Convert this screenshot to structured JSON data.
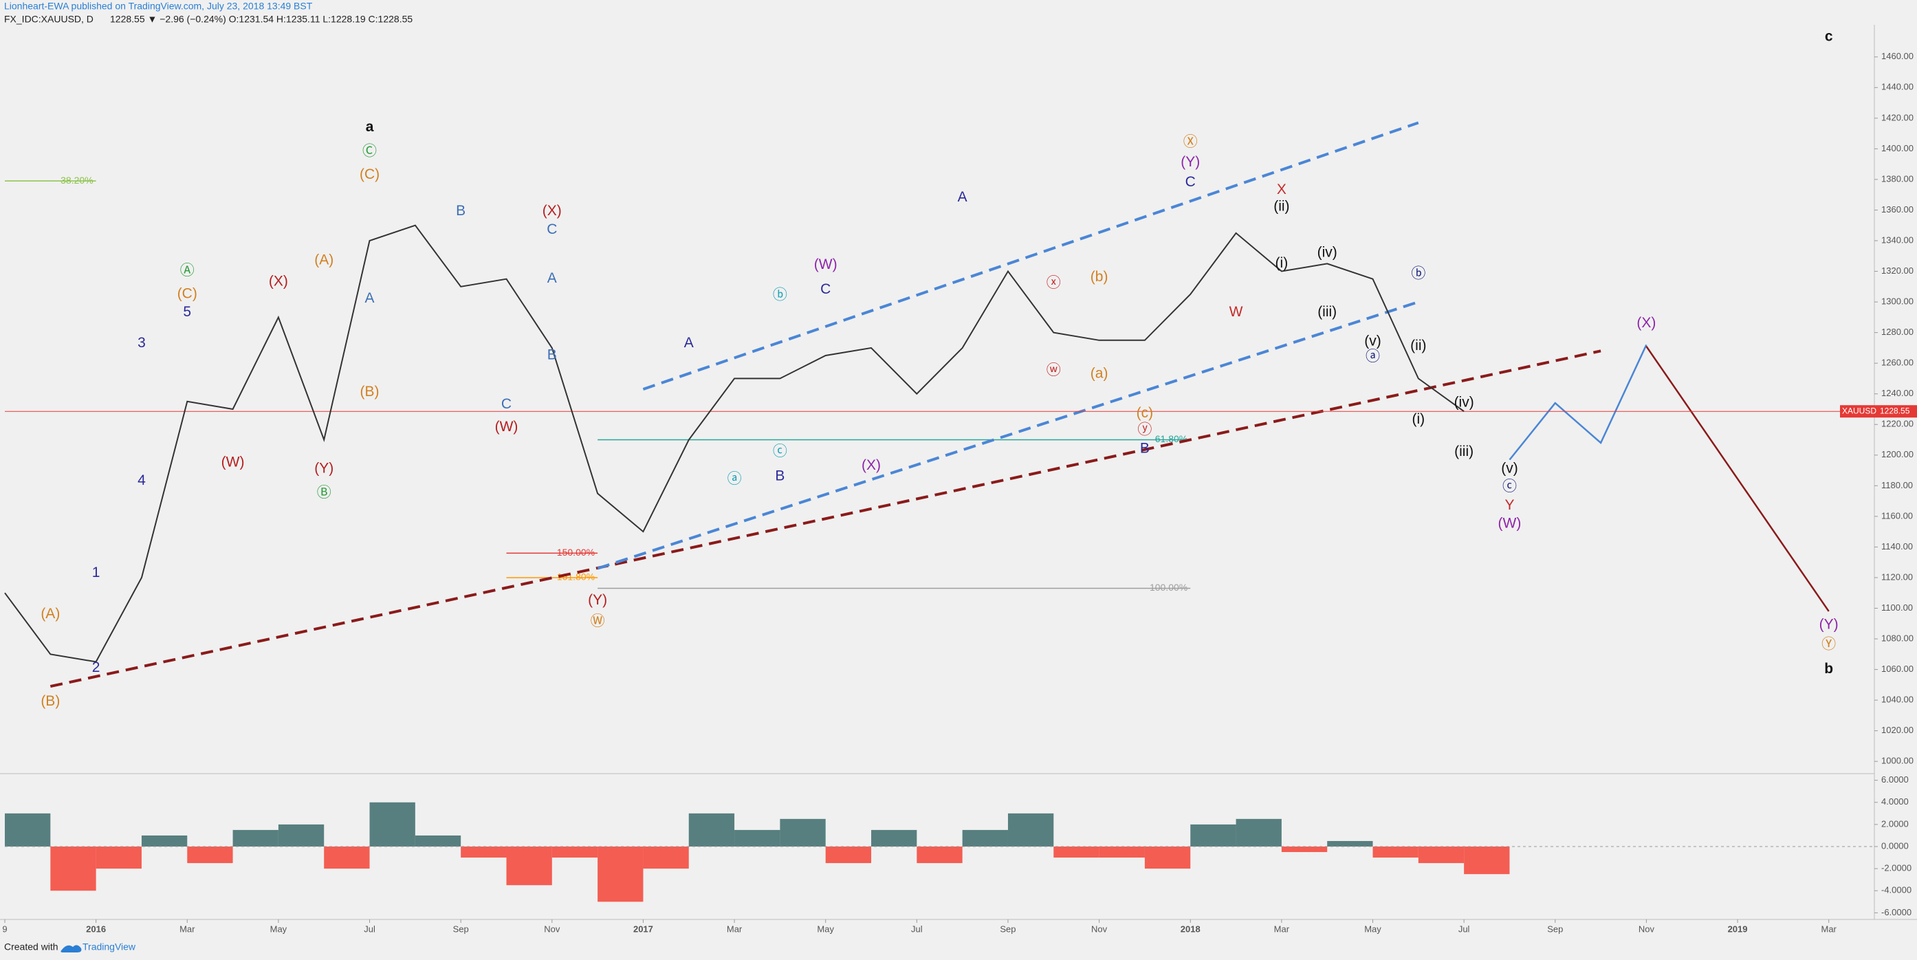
{
  "header": {
    "publisher": "Lionheart-EWA published on TradingView.com, July 23, 2018 13:49 BST",
    "symbol": "FX_IDC:XAUUSD, D",
    "quote": "1228.55 ▼ −2.96 (−0.24%) O:1231.54 H:1235.11 L:1228.19 C:1228.55"
  },
  "footer": {
    "created": "Created with",
    "brand": "TradingView"
  },
  "chart_data": [
    {
      "type": "line",
      "color": "#333333",
      "x": [
        "2015-11",
        "2015-12",
        "2016-01",
        "2016-02",
        "2016-03",
        "2016-04",
        "2016-05",
        "2016-06",
        "2016-07",
        "2016-08",
        "2016-09",
        "2016-10",
        "2016-11",
        "2016-12",
        "2017-01",
        "2017-02",
        "2017-03",
        "2017-04",
        "2017-05",
        "2017-06",
        "2017-07",
        "2017-08",
        "2017-09",
        "2017-10",
        "2017-11",
        "2017-12",
        "2018-01",
        "2018-02",
        "2018-03",
        "2018-04",
        "2018-05",
        "2018-06",
        "2018-07"
      ],
      "values": [
        1110,
        1070,
        1065,
        1120,
        1235,
        1230,
        1290,
        1210,
        1340,
        1350,
        1310,
        1315,
        1270,
        1175,
        1150,
        1210,
        1250,
        1250,
        1265,
        1270,
        1240,
        1270,
        1320,
        1280,
        1275,
        1275,
        1305,
        1345,
        1320,
        1325,
        1315,
        1250,
        1228.55
      ],
      "xlim": [
        "2015-11",
        "2019-04"
      ],
      "xticks": [
        {
          "value": "2015-11",
          "label": "9"
        },
        {
          "value": "2016-01",
          "label": "2016"
        },
        {
          "value": "2016-03",
          "label": "Mar"
        },
        {
          "value": "2016-05",
          "label": "May"
        },
        {
          "value": "2016-07",
          "label": "Jul"
        },
        {
          "value": "2016-09",
          "label": "Sep"
        },
        {
          "value": "2016-11",
          "label": "Nov"
        },
        {
          "value": "2017-01",
          "label": "2017"
        },
        {
          "value": "2017-03",
          "label": "Mar"
        },
        {
          "value": "2017-05",
          "label": "May"
        },
        {
          "value": "2017-07",
          "label": "Jul"
        },
        {
          "value": "2017-09",
          "label": "Sep"
        },
        {
          "value": "2017-11",
          "label": "Nov"
        },
        {
          "value": "2018-01",
          "label": "2018"
        },
        {
          "value": "2018-03",
          "label": "Mar"
        },
        {
          "value": "2018-05",
          "label": "May"
        },
        {
          "value": "2018-07",
          "label": "Jul"
        },
        {
          "value": "2018-09",
          "label": "Sep"
        },
        {
          "value": "2018-11",
          "label": "Nov"
        },
        {
          "value": "2019-01",
          "label": "2019"
        },
        {
          "value": "2019-03",
          "label": "Mar"
        }
      ],
      "ylim": [
        992,
        1481
      ],
      "yticks": [
        {
          "value": 1000,
          "label": "1000.00"
        },
        {
          "value": 1020,
          "label": "1020.00"
        },
        {
          "value": 1040,
          "label": "1040.00"
        },
        {
          "value": 1060,
          "label": "1060.00"
        },
        {
          "value": 1080,
          "label": "1080.00"
        },
        {
          "value": 1100,
          "label": "1100.00"
        },
        {
          "value": 1120,
          "label": "1120.00"
        },
        {
          "value": 1140,
          "label": "1140.00"
        },
        {
          "value": 1160,
          "label": "1160.00"
        },
        {
          "value": 1180,
          "label": "1180.00"
        },
        {
          "value": 1200,
          "label": "1200.00"
        },
        {
          "value": 1220,
          "label": "1220.00"
        },
        {
          "value": 1240,
          "label": "1240.00"
        },
        {
          "value": 1260,
          "label": "1260.00"
        },
        {
          "value": 1280,
          "label": "1280.00"
        },
        {
          "value": 1300,
          "label": "1300.00"
        },
        {
          "value": 1320,
          "label": "1320.00"
        },
        {
          "value": 1340,
          "label": "1340.00"
        },
        {
          "value": 1360,
          "label": "1360.00"
        },
        {
          "value": 1380,
          "label": "1380.00"
        },
        {
          "value": 1400,
          "label": "1400.00"
        },
        {
          "value": 1420,
          "label": "1420.00"
        },
        {
          "value": 1440,
          "label": "1440.00"
        },
        {
          "value": 1460,
          "label": "1460.00"
        }
      ],
      "grid": false,
      "last_price_label": "XAUUSD",
      "last_price": 1228.55,
      "last_price_color": "#e53935",
      "lines": [
        {
          "x": [
            "2015-12",
            "2018-10"
          ],
          "y": [
            1049,
            1268
          ],
          "color": "#8b1a1a",
          "dash": true
        },
        {
          "x": [
            "2017-01",
            "2018-06"
          ],
          "y": [
            1243,
            1417
          ],
          "color": "#4a86d6",
          "dash": true
        },
        {
          "x": [
            "2016-12",
            "2018-06"
          ],
          "y": [
            1126,
            1300
          ],
          "color": "#4a86d6",
          "dash": true
        },
        {
          "x": [
            "2018-08",
            "2018-09",
            "2018-10",
            "2018-11"
          ],
          "y": [
            1197,
            1234,
            1208,
            1272
          ],
          "color": "#4a86d6",
          "dash": false
        },
        {
          "x": [
            "2018-11",
            "2019-03"
          ],
          "y": [
            1271,
            1098
          ],
          "color": "#8b1a1a",
          "dash": false
        }
      ],
      "levels": [
        {
          "label": "38.20%",
          "price": 1379,
          "from": "2015-11",
          "to": "2016-01",
          "color": "#8bc34a"
        },
        {
          "label": "61.80%",
          "price": 1210,
          "from": "2016-12",
          "to": "2018-01",
          "color": "#26a69a"
        },
        {
          "label": "100.00%",
          "price": 1113,
          "from": "2016-12",
          "to": "2018-01",
          "color": "#9e9e9e"
        },
        {
          "label": "150.00%",
          "price": 1136,
          "from": "2016-10",
          "to": "2016-12",
          "color": "#e53935"
        },
        {
          "label": "161.80%",
          "price": 1120,
          "from": "2016-10",
          "to": "2016-12",
          "color": "#ff9800"
        }
      ],
      "annotations": [
        {
          "text": "a",
          "x": "2016-07",
          "y": 1414,
          "color": "#111111"
        },
        {
          "text": "c",
          "x": "2019-03",
          "y": 1473,
          "color": "#111111"
        },
        {
          "text": "b",
          "x": "2019-03",
          "y": 1060,
          "color": "#111111"
        },
        {
          "text": "Ⓒ",
          "x": "2016-07",
          "y": 1398,
          "color": "#2e9e3e"
        },
        {
          "text": "(C)",
          "x": "2016-07",
          "y": 1383,
          "color": "#d2801f"
        },
        {
          "text": "Ⓐ",
          "x": "2016-03",
          "y": 1320,
          "color": "#2e9e3e"
        },
        {
          "text": "(C)",
          "x": "2016-03",
          "y": 1305,
          "color": "#d2801f"
        },
        {
          "text": "5",
          "x": "2016-03",
          "y": 1293,
          "color": "#2a2a9a"
        },
        {
          "text": "3",
          "x": "2016-02",
          "y": 1273,
          "color": "#2a2a9a"
        },
        {
          "text": "4",
          "x": "2016-02",
          "y": 1183,
          "color": "#2a2a9a"
        },
        {
          "text": "1",
          "x": "2016-01",
          "y": 1123,
          "color": "#2a2a9a"
        },
        {
          "text": "2",
          "x": "2016-01",
          "y": 1061,
          "color": "#2a2a9a"
        },
        {
          "text": "(A)",
          "x": "2015-12",
          "y": 1096,
          "color": "#d2801f"
        },
        {
          "text": "(B)",
          "x": "2015-12",
          "y": 1039,
          "color": "#d2801f"
        },
        {
          "text": "(X)",
          "x": "2016-05",
          "y": 1313,
          "color": "#b71c1c"
        },
        {
          "text": "(W)",
          "x": "2016-04",
          "y": 1195,
          "color": "#b71c1c"
        },
        {
          "text": "(Y)",
          "x": "2016-06",
          "y": 1191,
          "color": "#b71c1c"
        },
        {
          "text": "Ⓑ",
          "x": "2016-06",
          "y": 1175,
          "color": "#2e9e3e"
        },
        {
          "text": "(A)",
          "x": "2016-06",
          "y": 1327,
          "color": "#d2801f"
        },
        {
          "text": "(B)",
          "x": "2016-07",
          "y": 1241,
          "color": "#d2801f"
        },
        {
          "text": "B",
          "x": "2016-09",
          "y": 1359,
          "color": "#3d6fb6"
        },
        {
          "text": "A",
          "x": "2016-07",
          "y": 1302,
          "color": "#3d6fb6"
        },
        {
          "text": "(X)",
          "x": "2016-11",
          "y": 1359,
          "color": "#b71c1c"
        },
        {
          "text": "C",
          "x": "2016-11",
          "y": 1347,
          "color": "#3d6fb6"
        },
        {
          "text": "A",
          "x": "2016-11",
          "y": 1315,
          "color": "#3d6fb6"
        },
        {
          "text": "B",
          "x": "2016-11",
          "y": 1265,
          "color": "#3d6fb6"
        },
        {
          "text": "C",
          "x": "2016-10",
          "y": 1233,
          "color": "#3d6fb6"
        },
        {
          "text": "(W)",
          "x": "2016-10",
          "y": 1218,
          "color": "#b71c1c"
        },
        {
          "text": "(Y)",
          "x": "2016-12",
          "y": 1105,
          "color": "#b71c1c"
        },
        {
          "text": "Ⓦ",
          "x": "2016-12",
          "y": 1091,
          "color": "#d2801f"
        },
        {
          "text": "ⓑ",
          "x": "2017-04",
          "y": 1304,
          "color": "#17a2b8"
        },
        {
          "text": "ⓐ",
          "x": "2017-03",
          "y": 1184,
          "color": "#17a2b8"
        },
        {
          "text": "ⓒ",
          "x": "2017-04",
          "y": 1202,
          "color": "#17a2b8"
        },
        {
          "text": "A",
          "x": "2017-02",
          "y": 1273,
          "color": "#2a2a9a"
        },
        {
          "text": "B",
          "x": "2017-04",
          "y": 1186,
          "color": "#2a2a9a"
        },
        {
          "text": "(W)",
          "x": "2017-05",
          "y": 1324,
          "color": "#8e24aa"
        },
        {
          "text": "C",
          "x": "2017-05",
          "y": 1308,
          "color": "#2a2a9a"
        },
        {
          "text": "(X)",
          "x": "2017-06",
          "y": 1193,
          "color": "#8e24aa"
        },
        {
          "text": "A",
          "x": "2017-08",
          "y": 1368,
          "color": "#2a2a9a"
        },
        {
          "text": "ⓧ",
          "x": "2017-10",
          "y": 1312,
          "color": "#c62828"
        },
        {
          "text": "ⓦ",
          "x": "2017-10",
          "y": 1255,
          "color": "#c62828"
        },
        {
          "text": "(b)",
          "x": "2017-11",
          "y": 1316,
          "color": "#d2801f"
        },
        {
          "text": "(a)",
          "x": "2017-11",
          "y": 1253,
          "color": "#d2801f"
        },
        {
          "text": "(c)",
          "x": "2017-12",
          "y": 1227,
          "color": "#d2801f"
        },
        {
          "text": "ⓨ",
          "x": "2017-12",
          "y": 1216,
          "color": "#c62828"
        },
        {
          "text": "B",
          "x": "2017-12",
          "y": 1204,
          "color": "#2a2a9a"
        },
        {
          "text": "Ⓧ",
          "x": "2018-01",
          "y": 1404,
          "color": "#d2801f"
        },
        {
          "text": "(Y)",
          "x": "2018-01",
          "y": 1391,
          "color": "#8e24aa"
        },
        {
          "text": "C",
          "x": "2018-01",
          "y": 1378,
          "color": "#2a2a9a"
        },
        {
          "text": "W",
          "x": "2018-02",
          "y": 1293,
          "color": "#c62828"
        },
        {
          "text": "X",
          "x": "2018-03",
          "y": 1373,
          "color": "#c62828"
        },
        {
          "text": "(ii)",
          "x": "2018-03",
          "y": 1362,
          "color": "#111111"
        },
        {
          "text": "(i)",
          "x": "2018-03",
          "y": 1325,
          "color": "#111111"
        },
        {
          "text": "(iv)",
          "x": "2018-04",
          "y": 1332,
          "color": "#111111"
        },
        {
          "text": "(iii)",
          "x": "2018-04",
          "y": 1293,
          "color": "#111111"
        },
        {
          "text": "(v)",
          "x": "2018-05",
          "y": 1274,
          "color": "#111111"
        },
        {
          "text": "ⓐ",
          "x": "2018-05",
          "y": 1264,
          "color": "#1a237e"
        },
        {
          "text": "ⓑ",
          "x": "2018-06",
          "y": 1318,
          "color": "#1a237e"
        },
        {
          "text": "(ii)",
          "x": "2018-06",
          "y": 1271,
          "color": "#111111"
        },
        {
          "text": "(iv)",
          "x": "2018-07",
          "y": 1234,
          "color": "#111111"
        },
        {
          "text": "(i)",
          "x": "2018-06",
          "y": 1223,
          "color": "#111111"
        },
        {
          "text": "(iii)",
          "x": "2018-07",
          "y": 1202,
          "color": "#111111"
        },
        {
          "text": "(v)",
          "x": "2018-08",
          "y": 1191,
          "color": "#111111"
        },
        {
          "text": "ⓒ",
          "x": "2018-08",
          "y": 1179,
          "color": "#1a237e"
        },
        {
          "text": "Y",
          "x": "2018-08",
          "y": 1167,
          "color": "#c62828"
        },
        {
          "text": "(W)",
          "x": "2018-08",
          "y": 1155,
          "color": "#8e24aa"
        },
        {
          "text": "(X)",
          "x": "2018-11",
          "y": 1286,
          "color": "#8e24aa"
        },
        {
          "text": "(Y)",
          "x": "2019-03",
          "y": 1089,
          "color": "#8e24aa"
        },
        {
          "text": "Ⓨ",
          "x": "2019-03",
          "y": 1076,
          "color": "#d2801f"
        }
      ]
    },
    {
      "type": "oscillator",
      "positive_color": "#3d6b6b",
      "negative_color": "#f44336",
      "x": [
        "2015-11",
        "2015-12",
        "2016-01",
        "2016-02",
        "2016-03",
        "2016-04",
        "2016-05",
        "2016-06",
        "2016-07",
        "2016-08",
        "2016-09",
        "2016-10",
        "2016-11",
        "2016-12",
        "2017-01",
        "2017-02",
        "2017-03",
        "2017-04",
        "2017-05",
        "2017-06",
        "2017-07",
        "2017-08",
        "2017-09",
        "2017-10",
        "2017-11",
        "2017-12",
        "2018-01",
        "2018-02",
        "2018-03",
        "2018-04",
        "2018-05",
        "2018-06",
        "2018-07"
      ],
      "values": [
        3,
        -4,
        -2,
        1,
        -1.5,
        1.5,
        2,
        -2,
        4,
        1,
        -1,
        -3.5,
        -1,
        -5,
        -2,
        3,
        1.5,
        2.5,
        -1.5,
        1.5,
        -1.5,
        1.5,
        3,
        -1,
        -1,
        -2,
        2,
        2.5,
        -0.5,
        0.5,
        -1,
        -1.5,
        -2.5
      ],
      "ylim": [
        -6.6,
        6.6
      ],
      "yticks": [
        {
          "value": 6,
          "label": "6.0000"
        },
        {
          "value": 4,
          "label": "4.0000"
        },
        {
          "value": 2,
          "label": "2.0000"
        },
        {
          "value": 0,
          "label": "0.0000"
        },
        {
          "value": -2,
          "label": "-2.0000"
        },
        {
          "value": -4,
          "label": "-4.0000"
        },
        {
          "value": -6,
          "label": "-6.0000"
        }
      ]
    }
  ]
}
